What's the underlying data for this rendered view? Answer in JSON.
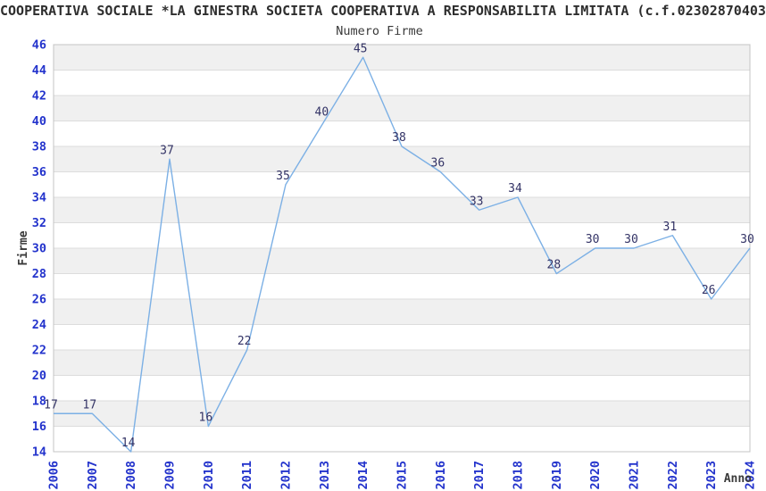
{
  "page": {
    "title": "COOPERATIVA SOCIALE *LA GINESTRA SOCIETA COOPERATIVA A RESPONSABILITA LIMITATA (c.f.02302870403",
    "subtitle": "Numero Firme"
  },
  "chart_data": {
    "type": "line",
    "title": "Numero Firme",
    "xlabel": "Anno",
    "ylabel": "Firme",
    "categories": [
      "2006",
      "2007",
      "2008",
      "2009",
      "2010",
      "2011",
      "2012",
      "2013",
      "2014",
      "2015",
      "2016",
      "2017",
      "2018",
      "2019",
      "2020",
      "2021",
      "2022",
      "2023",
      "2024"
    ],
    "values": [
      17,
      17,
      14,
      37,
      16,
      22,
      35,
      40,
      45,
      38,
      36,
      33,
      34,
      28,
      30,
      30,
      31,
      26,
      30
    ],
    "ylim": [
      14,
      46
    ],
    "ytick_step": 2,
    "grid": "horizontal",
    "legend": "none",
    "point_labels": true,
    "colors": {
      "line": "#7cb0e5",
      "tick_label": "#2333cc",
      "value_label": "#333366",
      "band": "#f0f0f0",
      "grid": "#dcdcdc",
      "border": "#c4c4c4"
    }
  }
}
